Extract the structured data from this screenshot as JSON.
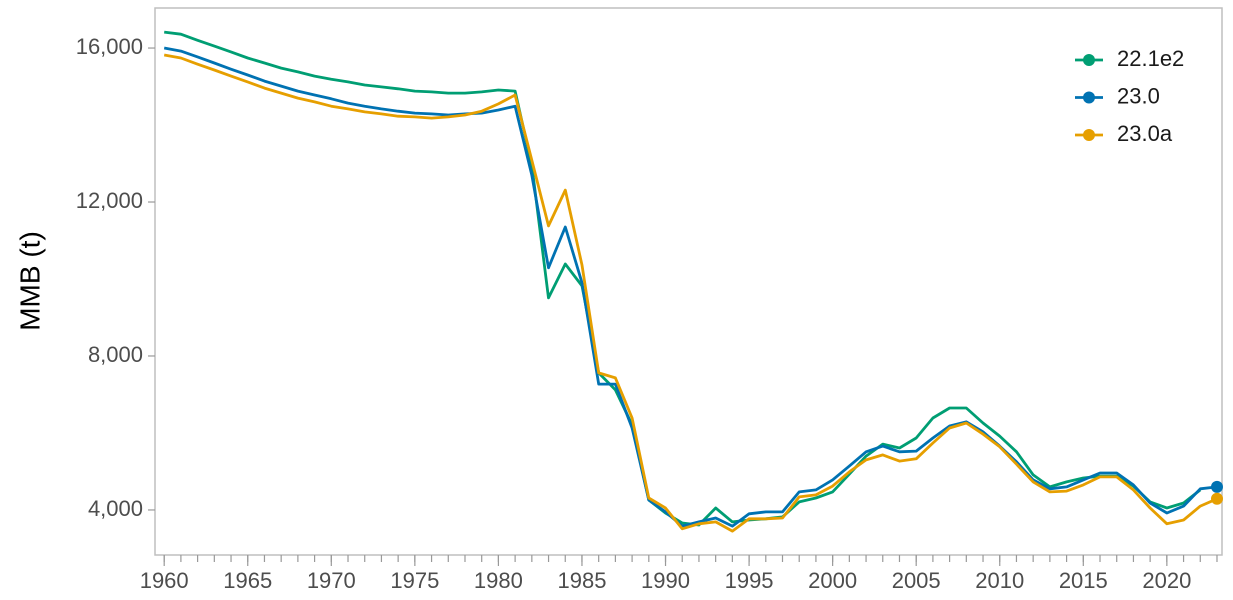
{
  "chart_data": {
    "type": "line",
    "y_label": "MMB (t)",
    "x": [
      1960,
      1961,
      1962,
      1963,
      1964,
      1965,
      1966,
      1967,
      1968,
      1969,
      1970,
      1971,
      1972,
      1973,
      1974,
      1975,
      1976,
      1977,
      1978,
      1979,
      1980,
      1981,
      1982,
      1983,
      1984,
      1985,
      1986,
      1987,
      1988,
      1989,
      1990,
      1991,
      1992,
      1993,
      1994,
      1995,
      1996,
      1997,
      1998,
      1999,
      2000,
      2001,
      2002,
      2003,
      2004,
      2005,
      2006,
      2007,
      2008,
      2009,
      2010,
      2011,
      2012,
      2013,
      2014,
      2015,
      2016,
      2017,
      2018,
      2019,
      2020,
      2021,
      2022,
      2023
    ],
    "series": [
      {
        "name": "22.1e2",
        "color": "#009E73",
        "values": [
          16415,
          16360,
          16200,
          16050,
          15900,
          15740,
          15610,
          15480,
          15380,
          15270,
          15190,
          15120,
          15040,
          14990,
          14940,
          14880,
          14860,
          14830,
          14830,
          14860,
          14910,
          14880,
          12960,
          9510,
          10390,
          9820,
          7560,
          7120,
          6210,
          4260,
          3920,
          3660,
          3610,
          4050,
          3690,
          3740,
          3770,
          3820,
          4210,
          4310,
          4470,
          4930,
          5400,
          5710,
          5610,
          5870,
          6390,
          6650,
          6650,
          6260,
          5920,
          5510,
          4910,
          4600,
          4730,
          4830,
          4880,
          4880,
          4620,
          4210,
          4050,
          4180,
          4520,
          null
        ]
      },
      {
        "name": "23.0",
        "color": "#0072B2",
        "values": [
          16000,
          15920,
          15770,
          15610,
          15450,
          15300,
          15140,
          15010,
          14880,
          14780,
          14680,
          14570,
          14490,
          14420,
          14360,
          14310,
          14290,
          14260,
          14290,
          14310,
          14390,
          14490,
          12700,
          10290,
          11350,
          9900,
          7270,
          7270,
          6130,
          4260,
          3950,
          3580,
          3690,
          3790,
          3580,
          3900,
          3950,
          3950,
          4470,
          4520,
          4780,
          5140,
          5510,
          5660,
          5510,
          5530,
          5870,
          6180,
          6290,
          6030,
          5660,
          5250,
          4780,
          4550,
          4600,
          4780,
          4960,
          4960,
          4650,
          4180,
          3920,
          4100,
          4550,
          4600
        ]
      },
      {
        "name": "23.0a",
        "color": "#E69F00",
        "values": [
          15820,
          15740,
          15580,
          15430,
          15270,
          15120,
          14960,
          14830,
          14700,
          14600,
          14490,
          14420,
          14340,
          14290,
          14230,
          14210,
          14180,
          14210,
          14260,
          14360,
          14550,
          14780,
          13090,
          11380,
          12310,
          10360,
          7560,
          7430,
          6390,
          4310,
          4050,
          3510,
          3640,
          3690,
          3450,
          3770,
          3770,
          3790,
          4340,
          4390,
          4620,
          4990,
          5300,
          5430,
          5270,
          5330,
          5740,
          6130,
          6260,
          5970,
          5640,
          5190,
          4730,
          4470,
          4490,
          4650,
          4860,
          4860,
          4520,
          4050,
          3640,
          3740,
          4100,
          4290
        ]
      }
    ],
    "xlim": [
      1959.45,
      2023.3
    ],
    "xticks": [
      1960,
      1965,
      1970,
      1975,
      1980,
      1985,
      1990,
      1995,
      2000,
      2005,
      2010,
      2015,
      2020
    ],
    "ylim": [
      2830,
      17040
    ],
    "yticks": [
      {
        "value": 4000,
        "label": "4,000"
      },
      {
        "value": 8000,
        "label": "8,000"
      },
      {
        "value": 12000,
        "label": "12,000"
      },
      {
        "value": 16000,
        "label": "16,000"
      }
    ],
    "legend": "top-right"
  }
}
